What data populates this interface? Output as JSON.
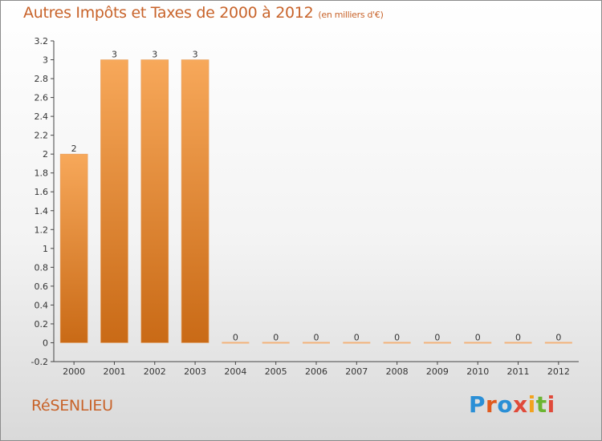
{
  "title": "Autres Impôts et Taxes de 2000 à 2012",
  "title_unit": "(en milliers d'€)",
  "commune": "RéSENLIEU",
  "logo": {
    "text": "Proxiti",
    "letters": [
      "P",
      "r",
      "o",
      "x",
      "i",
      "t",
      "i"
    ],
    "colors": [
      "#2a8fd6",
      "#e05a1e",
      "#2a8fd6",
      "#e04a3a",
      "#f2a21e",
      "#6bb531",
      "#e04a3a"
    ]
  },
  "chart_data": {
    "type": "bar",
    "title": "Autres Impôts et Taxes de 2000 à 2012",
    "xlabel": "",
    "ylabel": "",
    "categories": [
      "2000",
      "2001",
      "2002",
      "2003",
      "2004",
      "2005",
      "2006",
      "2007",
      "2008",
      "2009",
      "2010",
      "2011",
      "2012"
    ],
    "values": [
      2,
      3,
      3,
      3,
      0,
      0,
      0,
      0,
      0,
      0,
      0,
      0,
      0
    ],
    "value_labels": [
      "2",
      "3",
      "3",
      "3",
      "0",
      "0",
      "0",
      "0",
      "0",
      "0",
      "0",
      "0",
      "0"
    ],
    "ylim": [
      -0.2,
      3.2
    ],
    "yticks": [
      -0.2,
      0,
      0.2,
      0.4,
      0.6,
      0.8,
      1,
      1.2,
      1.4,
      1.6,
      1.8,
      2,
      2.2,
      2.4,
      2.6,
      2.8,
      3,
      3.2
    ],
    "ytick_labels": [
      "-0.2",
      "0",
      "0.2",
      "0.4",
      "0.6",
      "0.8",
      "1",
      "1.2",
      "1.4",
      "1.6",
      "1.8",
      "2",
      "2.2",
      "2.4",
      "2.6",
      "2.8",
      "3",
      "3.2"
    ],
    "bar_color": "#f0922e",
    "bar_color_dark": "#c96a16"
  }
}
